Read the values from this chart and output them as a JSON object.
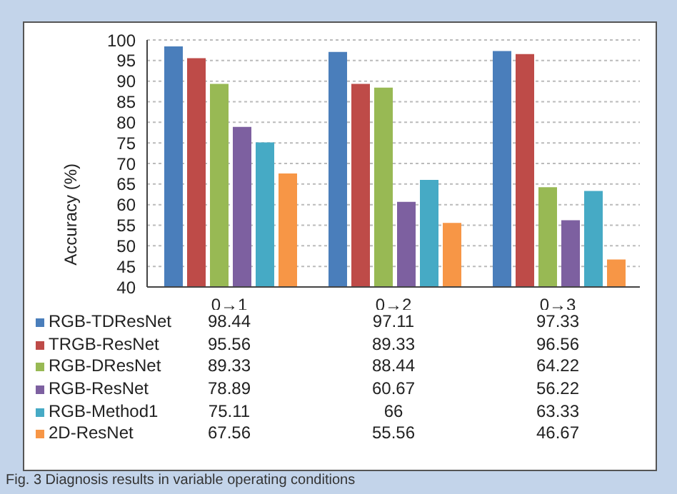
{
  "chart_data": {
    "type": "bar",
    "ylabel": "Accuracy (%)",
    "categories": [
      "0→1",
      "0→2",
      "0→3"
    ],
    "series": [
      {
        "name": "RGB-TDResNet",
        "color": "#4a7ebb",
        "values": [
          98.44,
          97.11,
          97.33
        ]
      },
      {
        "name": "TRGB-ResNet",
        "color": "#be4b48",
        "values": [
          95.56,
          89.33,
          96.56
        ]
      },
      {
        "name": "RGB-DResNet",
        "color": "#98b954",
        "values": [
          89.33,
          88.44,
          64.22
        ]
      },
      {
        "name": "RGB-ResNet",
        "color": "#7d60a0",
        "values": [
          78.89,
          60.67,
          56.22
        ]
      },
      {
        "name": "RGB-Method1",
        "color": "#46aac5",
        "values": [
          75.11,
          66,
          63.33
        ]
      },
      {
        "name": "2D-ResNet",
        "color": "#f79646",
        "values": [
          67.56,
          55.56,
          46.67
        ]
      }
    ],
    "ylim": [
      40,
      100
    ],
    "yticks": [
      40,
      45,
      50,
      55,
      60,
      65,
      70,
      75,
      80,
      85,
      90,
      95,
      100
    ],
    "grid": "y",
    "legend": "bottom",
    "data_labels": true,
    "annotations": [
      "Fig. 3 Diagnosis results in variable operating conditions"
    ]
  }
}
